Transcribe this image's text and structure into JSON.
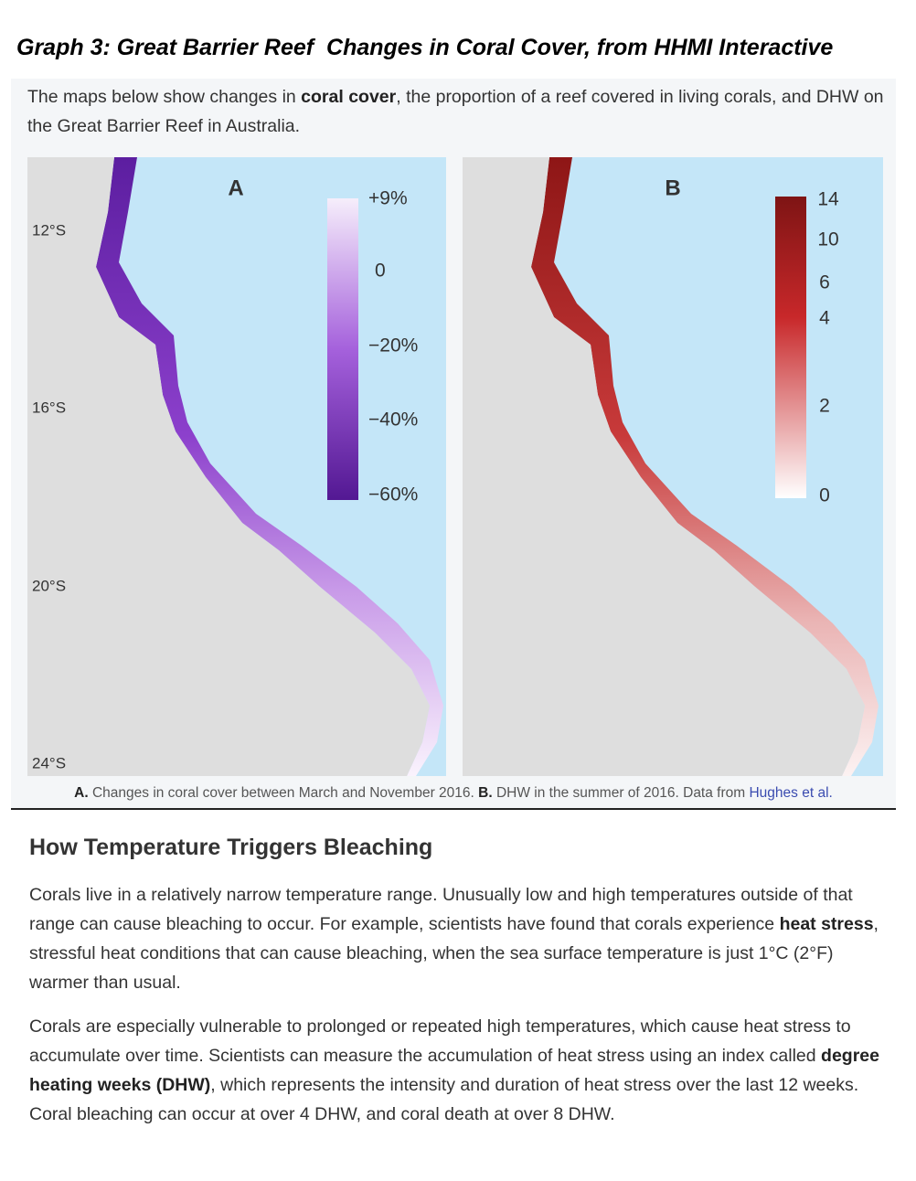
{
  "title": "Graph 3: Great Barrier Reef  Changes in Coral Cover, from HHMI Interactive",
  "intro": [
    "The maps below show changes in ",
    "coral cover",
    ", the proportion of a reef covered in living corals, and DHW on the Great Barrier Reef in Australia."
  ],
  "latitudes": [
    "12°S",
    "16°S",
    "20°S",
    "24°S"
  ],
  "maps": [
    {
      "label": "A",
      "scale": [
        "+9%",
        "0",
        "−20%",
        "−40%",
        "−60%"
      ]
    },
    {
      "label": "B",
      "scale": [
        "14",
        "10",
        "6",
        "4",
        "2",
        "0"
      ]
    }
  ],
  "caption": [
    "A.",
    " Changes in coral cover between March and November 2016. ",
    "B.",
    " DHW in the summer of 2016. Data from ",
    "Hughes et al."
  ],
  "section": {
    "heading": "How Temperature Triggers Bleaching",
    "paragraphs": [
      [
        "Corals live in a relatively narrow temperature range. Unusually low and high temperatures outside of that range can cause bleaching to occur. For example, scientists have found that corals experience ",
        "heat stress",
        ", stressful heat conditions that can cause bleaching, when the sea surface temperature is just 1°C (2°F) warmer than usual."
      ],
      [
        "Corals are especially vulnerable to prolonged or repeated high temperatures, which cause heat stress to accumulate over time. Scientists can measure the accumulation of heat stress using an index called ",
        "degree heating weeks (DHW)",
        ", which represents the intensity and duration of heat stress over the last 12 weeks. Coral bleaching can occur at over 4 DHW, and coral death at over 8 DHW."
      ]
    ]
  }
}
